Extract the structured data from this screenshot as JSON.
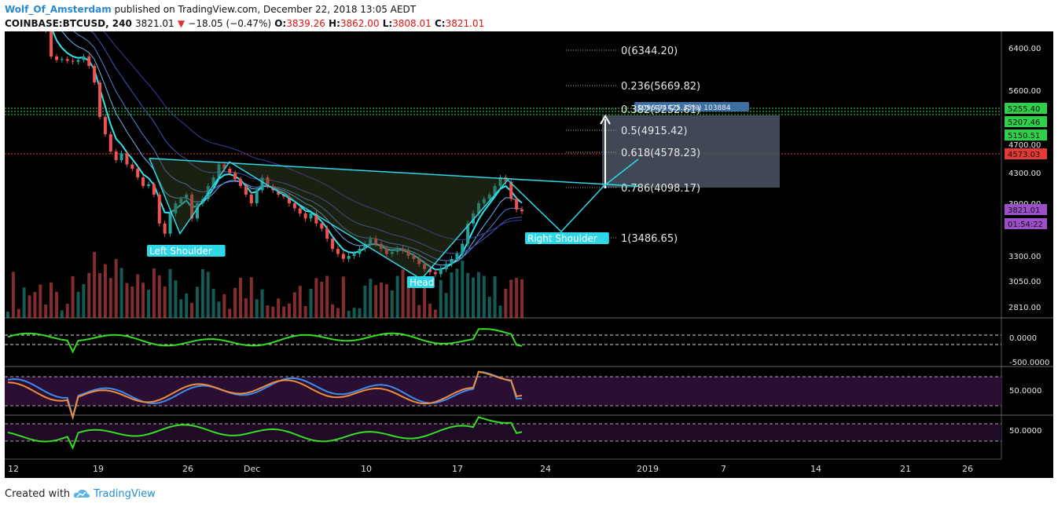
{
  "header": {
    "author": "Wolf_Of_Amsterdam",
    "published": "published on TradingView.com, December 22, 2018 13:05 AEDT",
    "symbol": "COINBASE:BTCUSD, 240",
    "last": "3821.01",
    "change": "−18.05 (−0.47%)",
    "o_label": "O:",
    "o": "3839.26",
    "h_label": "H:",
    "h": "3862.00",
    "l_label": "L:",
    "l": "3808.01",
    "c_label": "C:",
    "c": "3821.01"
  },
  "footer": {
    "created_with": "Created with",
    "brand": "TradingView"
  },
  "colors": {
    "bg": "#000000",
    "up": "#26a69a",
    "down": "#ef5350",
    "pattern": "#2fd8e8",
    "fib_box": "#4a5563",
    "green_osc": "#34e021",
    "resistance": "#38d838",
    "red_line": "#e53935"
  },
  "icons": {
    "down_arrow": "triangle-down-icon",
    "logo": "tradingview-cloud-icon"
  },
  "chart_data": {
    "type": "candlestick",
    "symbol": "COINBASE:BTCUSD",
    "interval": "240",
    "y_axis_ticks": [
      "6400.00",
      "5600.00",
      "4700.00",
      "4300.00",
      "3900.00",
      "3300.00",
      "3050.00",
      "2810.00"
    ],
    "price_tags": [
      {
        "label": "5255.40",
        "color": "#2fd04a"
      },
      {
        "label": "5207.46",
        "color": "#2fd04a"
      },
      {
        "label": "5150.51",
        "color": "#2fd04a"
      },
      {
        "label": "4573.03",
        "color": "#e53935"
      },
      {
        "label": "3821.01",
        "color": "#9c4fc9"
      },
      {
        "label": "01:54:22",
        "color": "#9c4fc9"
      }
    ],
    "x_axis_ticks": [
      "12",
      "19",
      "26",
      "Dec",
      "10",
      "17",
      "24",
      "2019",
      "7",
      "14",
      "21",
      "26"
    ],
    "fib_levels": [
      {
        "label": "0(6344.20)",
        "price": 6344.2
      },
      {
        "label": "0.236(5669.82)",
        "price": 5669.82
      },
      {
        "label": "0.382(5252.61)",
        "price": 5252.61
      },
      {
        "label": "0.5(4915.42)",
        "price": 4915.42
      },
      {
        "label": "0.618(4578.23)",
        "price": 4578.23
      },
      {
        "label": "0.786(4098.17)",
        "price": 4098.17
      },
      {
        "label": "1(3486.65)",
        "price": 3486.65
      }
    ],
    "measure_label": "1096.94 (25.35%) 103884",
    "pattern_labels": [
      "Left Shoulder",
      "Head",
      "Right Shoulder"
    ],
    "pattern_points": [
      [
        "Nov 21",
        4420
      ],
      [
        "Nov 24",
        3600
      ],
      [
        "Nov 28",
        4380
      ],
      [
        "Dec 14",
        3150
      ],
      [
        "Dec 21",
        4170
      ],
      [
        "Dec 24",
        3620
      ],
      [
        "Dec 27",
        4098
      ],
      [
        "Dec 28",
        4410
      ]
    ],
    "neckline": [
      [
        "Nov 21",
        4420
      ],
      [
        "Dec 28",
        4098
      ]
    ],
    "close": [
      6380,
      6375,
      6362,
      6378,
      6350,
      6340,
      6320,
      5900,
      5600,
      5560,
      5570,
      5550,
      5540,
      5560,
      5600,
      5490,
      5300,
      4900,
      4700,
      4500,
      4400,
      4480,
      4350,
      4300,
      4200,
      4100,
      4120,
      4000,
      3700,
      3600,
      3800,
      3900,
      3950,
      4000,
      3750,
      3900,
      3950,
      4100,
      4200,
      4350,
      4300,
      4250,
      4180,
      4100,
      4000,
      3900,
      4050,
      4200,
      4100,
      4050,
      4000,
      3980,
      3900,
      3850,
      3800,
      3750,
      3800,
      3700,
      3650,
      3550,
      3450,
      3400,
      3350,
      3380,
      3400,
      3450,
      3500,
      3550,
      3500,
      3450,
      3400,
      3420,
      3450,
      3430,
      3380,
      3350,
      3300,
      3250,
      3220,
      3200,
      3250,
      3300,
      3350,
      3400,
      3500,
      3700,
      3800,
      3900,
      3950,
      4000,
      4100,
      4200,
      4150,
      3950,
      3839,
      3821
    ],
    "volume_panel": true,
    "osc_panels": [
      {
        "ticks": [
          "0.0000",
          "-500.0000"
        ]
      },
      {
        "ticks": [
          "50.0000"
        ]
      },
      {
        "ticks": [
          "50.0000"
        ]
      }
    ]
  }
}
